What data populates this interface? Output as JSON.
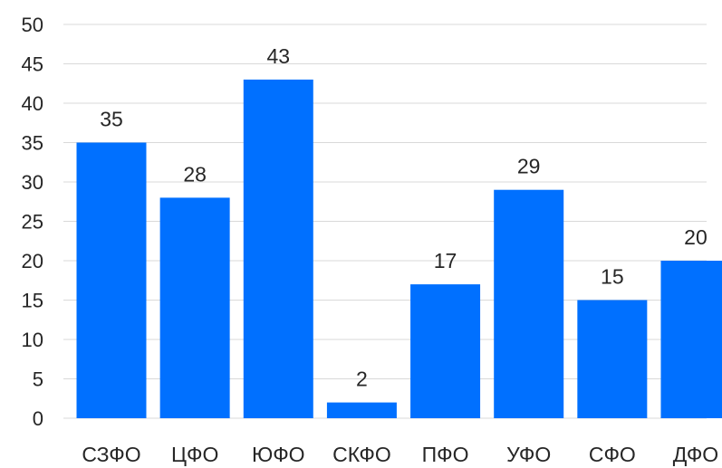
{
  "chart_data": {
    "type": "bar",
    "categories": [
      "СЗФО",
      "ЦФО",
      "ЮФО",
      "СКФО",
      "ПФО",
      "УФО",
      "СФО",
      "ДФО"
    ],
    "values": [
      35,
      28,
      43,
      2,
      17,
      29,
      15,
      20
    ],
    "y_ticks": [
      "0",
      "5",
      "10",
      "15",
      "20",
      "25",
      "30",
      "35",
      "40",
      "45",
      "50"
    ],
    "ylim": [
      0,
      50
    ],
    "grid": true,
    "data_labels": true,
    "bar_color": "#0070ff"
  }
}
